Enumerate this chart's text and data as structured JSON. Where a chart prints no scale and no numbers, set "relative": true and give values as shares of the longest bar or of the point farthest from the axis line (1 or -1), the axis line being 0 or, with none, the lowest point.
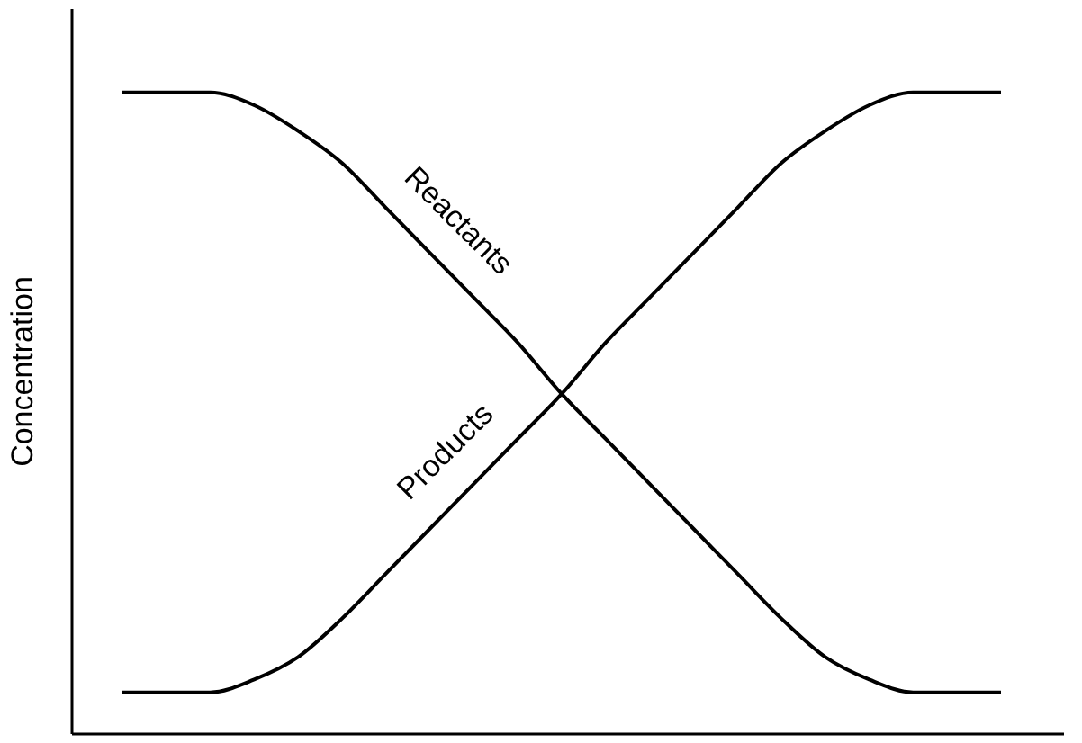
{
  "chart_data": {
    "type": "line",
    "ylabel": "Concentration",
    "relative": true,
    "grid": false,
    "legend": false,
    "categories": [
      null,
      null,
      null,
      null,
      null,
      null,
      null,
      null,
      null,
      null,
      null,
      null,
      null,
      null,
      null,
      null,
      null,
      null,
      null,
      null,
      null
    ],
    "series": [
      {
        "name": "Reactants",
        "color": "#000000",
        "values": [
          1,
          1,
          1,
          0.98,
          0.94,
          0.89,
          0.82,
          0.75,
          0.68,
          0.61,
          0.53,
          0.46,
          0.39,
          0.32,
          0.25,
          0.18,
          0.12,
          0.085,
          0.065,
          0.065,
          0.065
        ]
      },
      {
        "name": "Products",
        "color": "#000000",
        "values": [
          0.065,
          0.065,
          0.065,
          0.085,
          0.12,
          0.18,
          0.25,
          0.32,
          0.39,
          0.46,
          0.53,
          0.61,
          0.68,
          0.75,
          0.82,
          0.89,
          0.94,
          0.98,
          1,
          1,
          1
        ]
      }
    ]
  }
}
